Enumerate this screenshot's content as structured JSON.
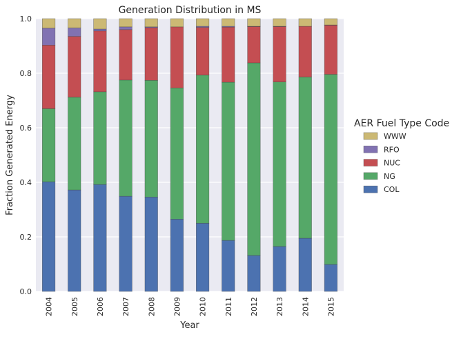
{
  "chart_data": {
    "type": "bar",
    "stacked": true,
    "title": "Generation Distribution in MS",
    "xlabel": "Year",
    "ylabel": "Fraction Generated Energy",
    "ylim": [
      0,
      1.0
    ],
    "yticks": [
      "0.0",
      "0.2",
      "0.4",
      "0.6",
      "0.8",
      "1.0"
    ],
    "grid": true,
    "legend_title": "AER Fuel Type Code",
    "legend_placement": "right",
    "legend_order": [
      "WWW",
      "RFO",
      "NUC",
      "NG",
      "COL"
    ],
    "categories": [
      "2004",
      "2005",
      "2006",
      "2007",
      "2008",
      "2009",
      "2010",
      "2011",
      "2012",
      "2013",
      "2014",
      "2015"
    ],
    "series": [
      {
        "name": "COL",
        "color": "#4c72b0",
        "values": [
          0.402,
          0.372,
          0.392,
          0.349,
          0.346,
          0.265,
          0.25,
          0.187,
          0.132,
          0.165,
          0.195,
          0.099
        ]
      },
      {
        "name": "NG",
        "color": "#55a868",
        "values": [
          0.268,
          0.34,
          0.34,
          0.426,
          0.428,
          0.481,
          0.543,
          0.58,
          0.706,
          0.603,
          0.591,
          0.697
        ]
      },
      {
        "name": "NUC",
        "color": "#c44e52",
        "values": [
          0.233,
          0.223,
          0.223,
          0.185,
          0.193,
          0.224,
          0.175,
          0.202,
          0.133,
          0.203,
          0.186,
          0.18
        ]
      },
      {
        "name": "RFO",
        "color": "#8172b2",
        "values": [
          0.062,
          0.031,
          0.007,
          0.01,
          0.003,
          0.0,
          0.004,
          0.003,
          0.001,
          0.001,
          0.0,
          0.001
        ]
      },
      {
        "name": "WWW",
        "color": "#ccb974",
        "values": [
          0.035,
          0.034,
          0.038,
          0.03,
          0.03,
          0.03,
          0.028,
          0.028,
          0.028,
          0.028,
          0.028,
          0.023
        ]
      }
    ]
  }
}
